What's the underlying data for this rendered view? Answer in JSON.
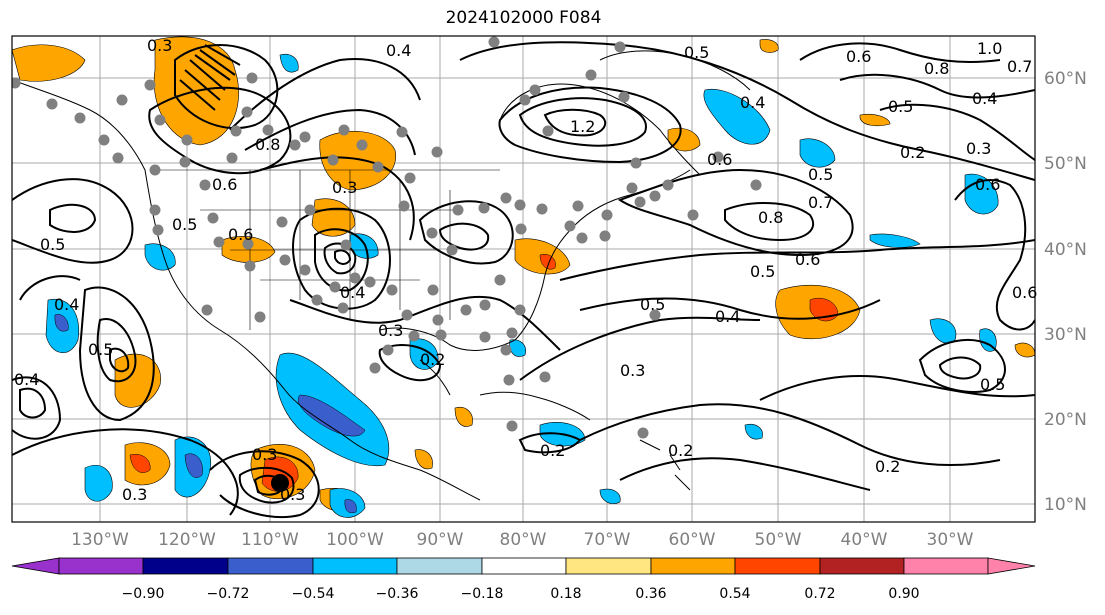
{
  "title": "2024102000 F084",
  "longitude_labels": [
    "130°W",
    "120°W",
    "110°W",
    "100°W",
    "90°W",
    "80°W",
    "70°W",
    "60°W",
    "50°W",
    "40°W",
    "30°W"
  ],
  "latitude_labels": [
    "60°N",
    "50°N",
    "40°N",
    "30°N",
    "20°N",
    "10°N"
  ],
  "colorbar": {
    "ticks": [
      "−0.90",
      "−0.72",
      "−0.54",
      "−0.36",
      "−0.18",
      "0.18",
      "0.36",
      "0.54",
      "0.72",
      "0.90"
    ],
    "colors": [
      "#9932cc",
      "#00008b",
      "#3a5fcd",
      "#00bfff",
      "#add8e6",
      "#ffffff",
      "#ffe680",
      "#ffa500",
      "#ff4500",
      "#b22222",
      "#ff82ab"
    ]
  },
  "contour_labels": [
    "0.3",
    "0.4",
    "0.5",
    "1.0",
    "0.8",
    "0.7",
    "0.6",
    "1.2",
    "0.5",
    "0.4",
    "0.2",
    "0.3",
    "0.6",
    "0.5",
    "0.8",
    "0.7",
    "0.6",
    "0.5",
    "0.5",
    "0.4",
    "0.3",
    "0.2",
    "0.2",
    "0.5",
    "0.6",
    "0.3",
    "0.5",
    "0.4",
    "0.3",
    "0.3",
    "0.2",
    "0.5",
    "0.4",
    "0.4",
    "0.6",
    "0.3",
    "0.3",
    "0.2",
    "0.4",
    "0.6",
    "0.6",
    "0.5",
    "0.8"
  ],
  "legend_colors": {
    "stations": "#808080",
    "contours": "#000000",
    "grid": "#a9a9a9"
  }
}
